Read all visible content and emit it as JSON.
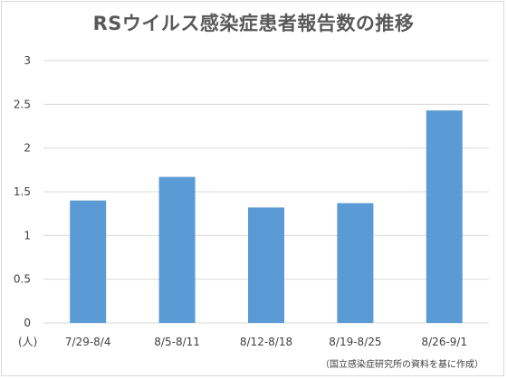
{
  "chart_data": {
    "type": "bar",
    "title": "RSウイルス感染症患者報告数の推移",
    "xlabel": "",
    "ylabel": "",
    "y_unit": "(人)",
    "categories": [
      "7/29-8/4",
      "8/5-8/11",
      "8/12-8/18",
      "8/19-8/25",
      "8/26-9/1"
    ],
    "values": [
      1.4,
      1.67,
      1.32,
      1.37,
      2.43
    ],
    "ylim": [
      0,
      3
    ],
    "yticks": [
      "0",
      "0.5",
      "1",
      "1.5",
      "2",
      "2.5",
      "3"
    ],
    "grid": true,
    "legend": "none",
    "bar_color": "#5b9bd5",
    "grid_color": "#d9d9d9",
    "source_note": "（国立感染症研究所の資料を基に作成）"
  }
}
